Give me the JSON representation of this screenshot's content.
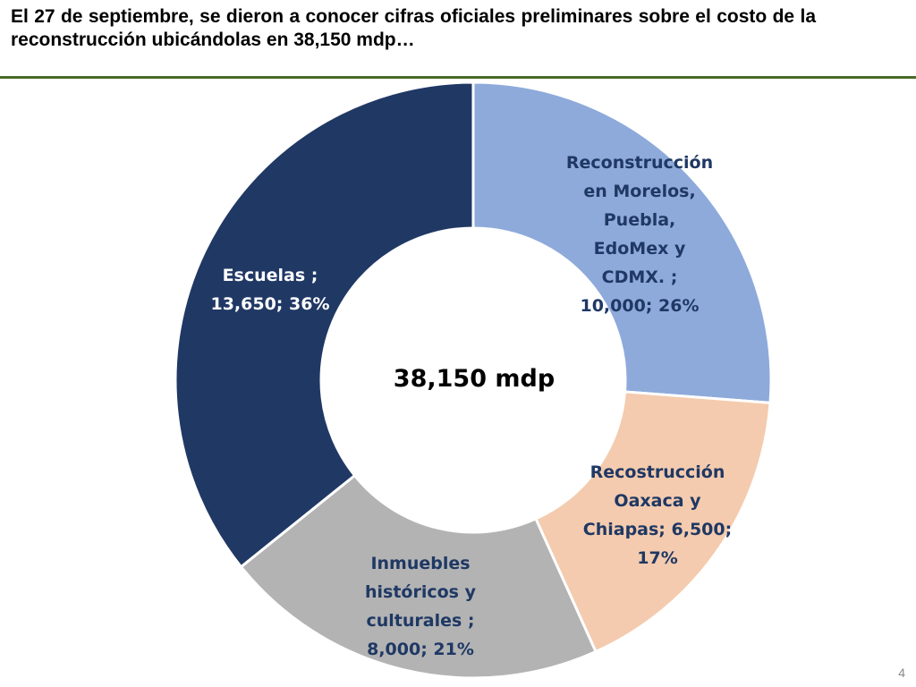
{
  "slide": {
    "title": "El 27 de septiembre, se dieron a conocer cifras oficiales preliminares sobre el costo de la reconstrucción ubicándolas en 38,150 mdp…",
    "page_number": "4"
  },
  "chart_data": {
    "type": "pie",
    "donut": true,
    "center_label": "38,150 mdp",
    "slices": [
      {
        "label": "Reconstrucción\nen Morelos,\nPuebla,\nEdoMex y\nCDMX. ;\n10,000; 26%",
        "value": 10000,
        "percent": 26,
        "color": "#8eaadb",
        "text_color": "#1f3864"
      },
      {
        "label": "Recostrucción\nOaxaca y\nChiapas; 6,500;\n17%",
        "value": 6500,
        "percent": 17,
        "color": "#f4cbae",
        "text_color": "#1f3864"
      },
      {
        "label": "Inmuebles\nhistóricos y\nculturales ;\n8,000; 21%",
        "value": 8000,
        "percent": 21,
        "color": "#b3b3b3",
        "text_color": "#1f3864"
      },
      {
        "label": "Escuelas ;\n13,650; 36%",
        "value": 13650,
        "percent": 36,
        "color": "#203864",
        "text_color": "#ffffff"
      }
    ]
  }
}
